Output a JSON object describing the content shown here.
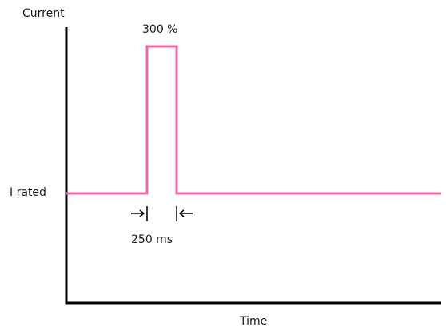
{
  "diagram": {
    "y_axis_label": "Current",
    "x_axis_label": "Time",
    "peak_label": "300 %",
    "rated_label": "I rated",
    "pulse_width_label": "250 ms",
    "colors": {
      "signal": "#e96aa9",
      "axis": "#000000",
      "text": "#1a1a1a"
    }
  }
}
